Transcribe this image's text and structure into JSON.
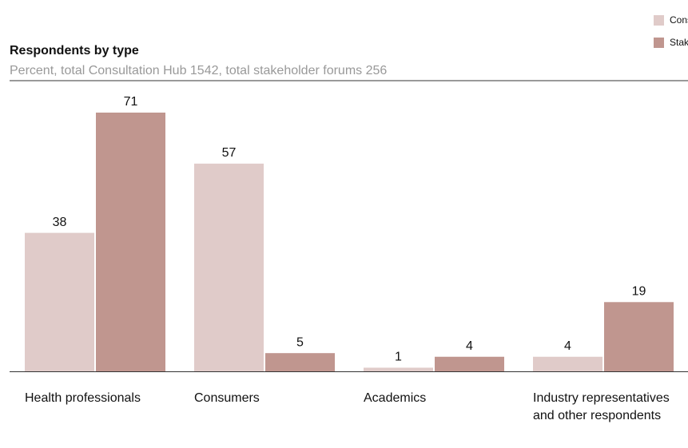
{
  "chart_data": {
    "type": "bar",
    "title": "Respondents by type",
    "subtitle": "Percent, total Consultation Hub 1542, total stakeholder forums 256",
    "categories": [
      "Health professionals",
      "Consumers",
      "Academics",
      "Industry representatives and other respondents"
    ],
    "series": [
      {
        "name": "Consultation Hub",
        "color": "#e0cbc9",
        "values": [
          38,
          57,
          1,
          4
        ]
      },
      {
        "name": "Stakeholder Forums",
        "color": "#c0968f",
        "values": [
          71,
          5,
          4,
          19
        ]
      }
    ],
    "legend": "top-right"
  }
}
